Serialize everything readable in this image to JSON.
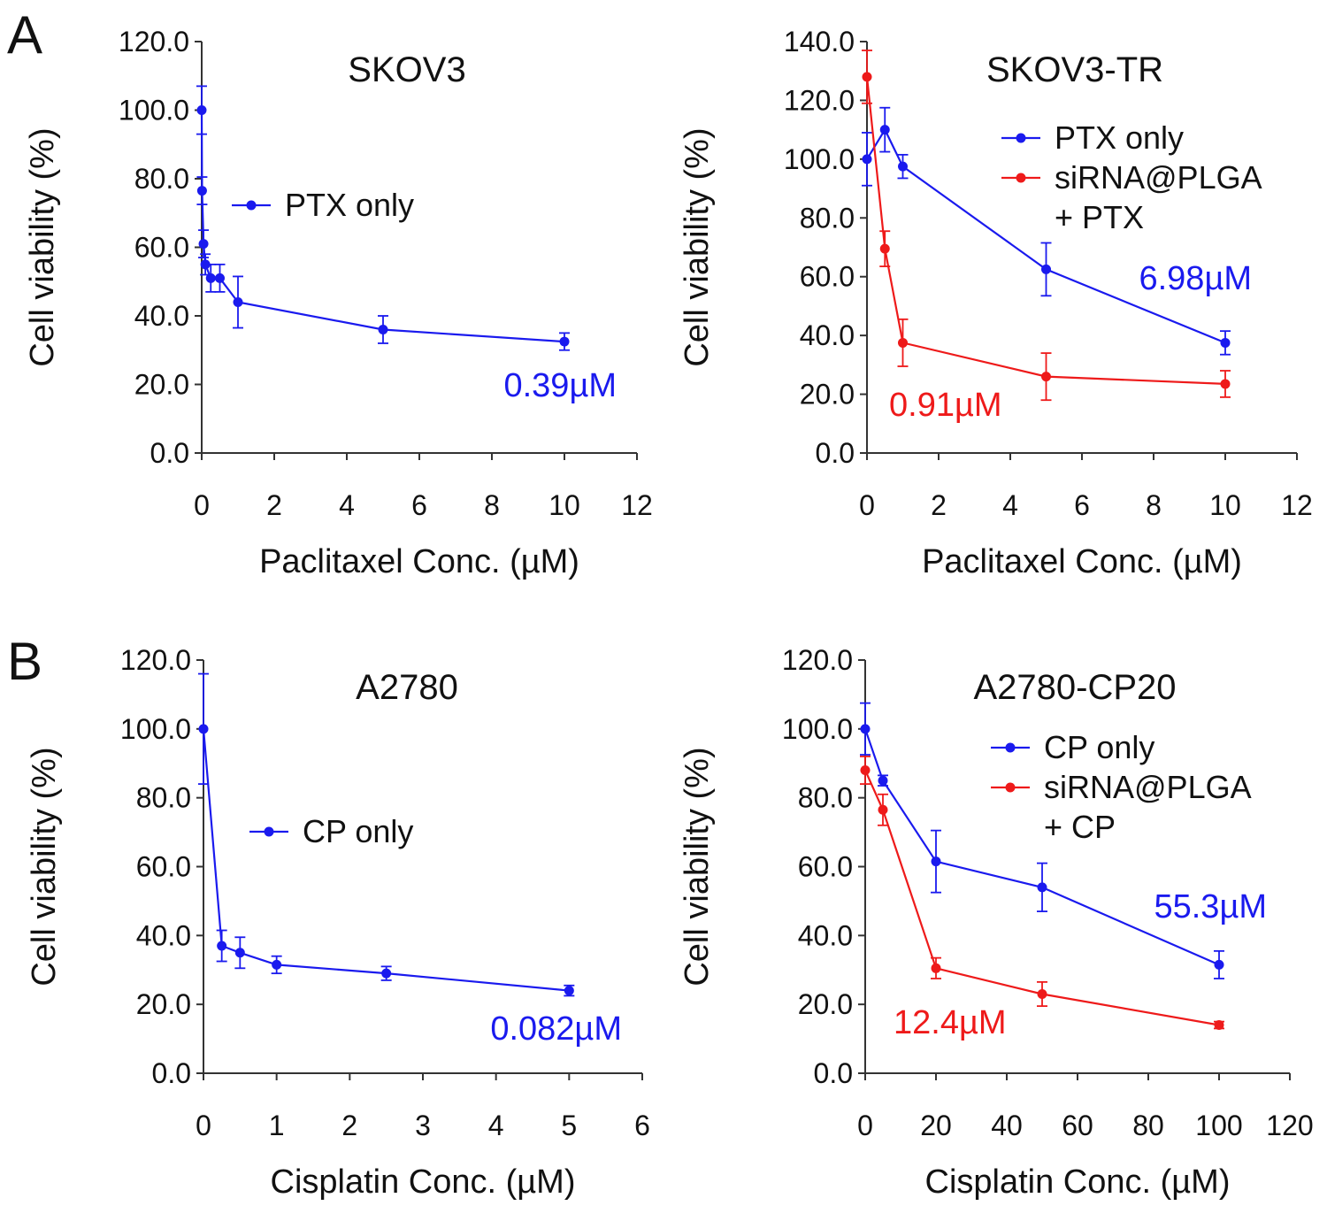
{
  "panel_letters": [
    "A",
    "B"
  ],
  "colors": {
    "blue": "#1a1aee",
    "red": "#ee1a1a",
    "axis": "#333333"
  },
  "chart_data": [
    {
      "type": "line",
      "panel": "A",
      "title": "SKOV3",
      "xlabel": "Paclitaxel Conc. (µM)",
      "ylabel": "Cell viability (%)",
      "xlim": [
        0,
        12
      ],
      "ylim": [
        0,
        120
      ],
      "xticks": [
        0,
        2,
        4,
        6,
        8,
        10,
        12
      ],
      "xtick_labels": [
        "0",
        "2",
        "4",
        "6",
        "8",
        "10",
        "12"
      ],
      "yticks": [
        0,
        20,
        40,
        60,
        80,
        100,
        120
      ],
      "ytick_labels": [
        "0.0",
        "20.0",
        "40.0",
        "60.0",
        "80.0",
        "100.0",
        "120.0"
      ],
      "legend_position": "middle-left",
      "series": [
        {
          "name": "PTX only",
          "color": "#1a1aee",
          "x": [
            0,
            0.01,
            0.05,
            0.1,
            0.25,
            0.5,
            1,
            5,
            10
          ],
          "y": [
            100,
            76.5,
            61,
            55,
            51,
            51,
            44,
            36,
            32.5
          ],
          "err": [
            7,
            4,
            4,
            3,
            4,
            4,
            7.5,
            4,
            2.5
          ]
        }
      ],
      "annotations": [
        {
          "text": "0.39µM",
          "color": "#1a1aee"
        }
      ]
    },
    {
      "type": "line",
      "panel": "A",
      "title": "SKOV3-TR",
      "xlabel": "Paclitaxel Conc. (µM)",
      "ylabel": "Cell viability (%)",
      "xlim": [
        0,
        12
      ],
      "ylim": [
        0,
        140
      ],
      "xticks": [
        0,
        2,
        4,
        6,
        8,
        10,
        12
      ],
      "xtick_labels": [
        "0",
        "2",
        "4",
        "6",
        "8",
        "10",
        "12"
      ],
      "yticks": [
        0,
        20,
        40,
        60,
        80,
        100,
        120,
        140
      ],
      "ytick_labels": [
        "0.0",
        "20.0",
        "40.0",
        "60.0",
        "80.0",
        "100.0",
        "120.0",
        "140.0"
      ],
      "legend_position": "top-right",
      "series": [
        {
          "name": "PTX only",
          "color": "#1a1aee",
          "x": [
            0,
            0.5,
            1,
            5,
            10
          ],
          "y": [
            100,
            110,
            97.5,
            62.5,
            37.5
          ],
          "err": [
            9,
            7.5,
            4,
            9,
            4
          ]
        },
        {
          "name": "siRNA@PLGA",
          "name_line2": "+ PTX",
          "color": "#ee1a1a",
          "x": [
            0,
            0.5,
            1,
            5,
            10
          ],
          "y": [
            128,
            69.5,
            37.5,
            26,
            23.5
          ],
          "err": [
            9,
            6,
            8,
            8,
            4.5
          ]
        }
      ],
      "annotations": [
        {
          "text": "6.98µM",
          "color": "#1a1aee"
        },
        {
          "text": "0.91µM",
          "color": "#ee1a1a"
        }
      ]
    },
    {
      "type": "line",
      "panel": "B",
      "title": "A2780",
      "xlabel": "Cisplatin Conc. (µM)",
      "ylabel": "Cell viability (%)",
      "xlim": [
        0,
        6
      ],
      "ylim": [
        0,
        120
      ],
      "xticks": [
        0,
        1,
        2,
        3,
        4,
        5,
        6
      ],
      "xtick_labels": [
        "0",
        "1",
        "2",
        "3",
        "4",
        "5",
        "6"
      ],
      "yticks": [
        0,
        20,
        40,
        60,
        80,
        100,
        120
      ],
      "ytick_labels": [
        "0.0",
        "20.0",
        "40.0",
        "60.0",
        "80.0",
        "100.0",
        "120.0"
      ],
      "legend_position": "middle",
      "series": [
        {
          "name": "CP only",
          "color": "#1a1aee",
          "x": [
            0,
            0.25,
            0.5,
            1,
            2.5,
            5
          ],
          "y": [
            100,
            37,
            35,
            31.5,
            29,
            24
          ],
          "err": [
            16,
            4.5,
            4.5,
            2.5,
            2,
            1.5
          ]
        }
      ],
      "annotations": [
        {
          "text": "0.082µM",
          "color": "#1a1aee"
        }
      ]
    },
    {
      "type": "line",
      "panel": "B",
      "title": "A2780-CP20",
      "xlabel": "Cisplatin Conc. (µM)",
      "ylabel": "Cell viability (%)",
      "xlim": [
        0,
        120
      ],
      "ylim": [
        0,
        120
      ],
      "xticks": [
        0,
        20,
        40,
        60,
        80,
        100,
        120
      ],
      "xtick_labels": [
        "0",
        "20",
        "40",
        "60",
        "80",
        "100",
        "120"
      ],
      "yticks": [
        0,
        20,
        40,
        60,
        80,
        100,
        120
      ],
      "ytick_labels": [
        "0.0",
        "20.0",
        "40.0",
        "60.0",
        "80.0",
        "100.0",
        "120.0"
      ],
      "legend_position": "top-right",
      "series": [
        {
          "name": "CP only",
          "color": "#1a1aee",
          "x": [
            0,
            5,
            20,
            50,
            100
          ],
          "y": [
            100,
            85,
            61.5,
            54,
            31.5
          ],
          "err": [
            7.5,
            1.5,
            9,
            7,
            4
          ]
        },
        {
          "name": "siRNA@PLGA",
          "name_line2": "+ CP",
          "color": "#ee1a1a",
          "x": [
            0,
            5,
            20,
            50,
            100
          ],
          "y": [
            88,
            76.5,
            30.5,
            23,
            14
          ],
          "err": [
            4,
            4.5,
            3,
            3.5,
            1
          ]
        }
      ],
      "annotations": [
        {
          "text": "55.3µM",
          "color": "#1a1aee"
        },
        {
          "text": "12.4µM",
          "color": "#ee1a1a"
        }
      ]
    }
  ]
}
